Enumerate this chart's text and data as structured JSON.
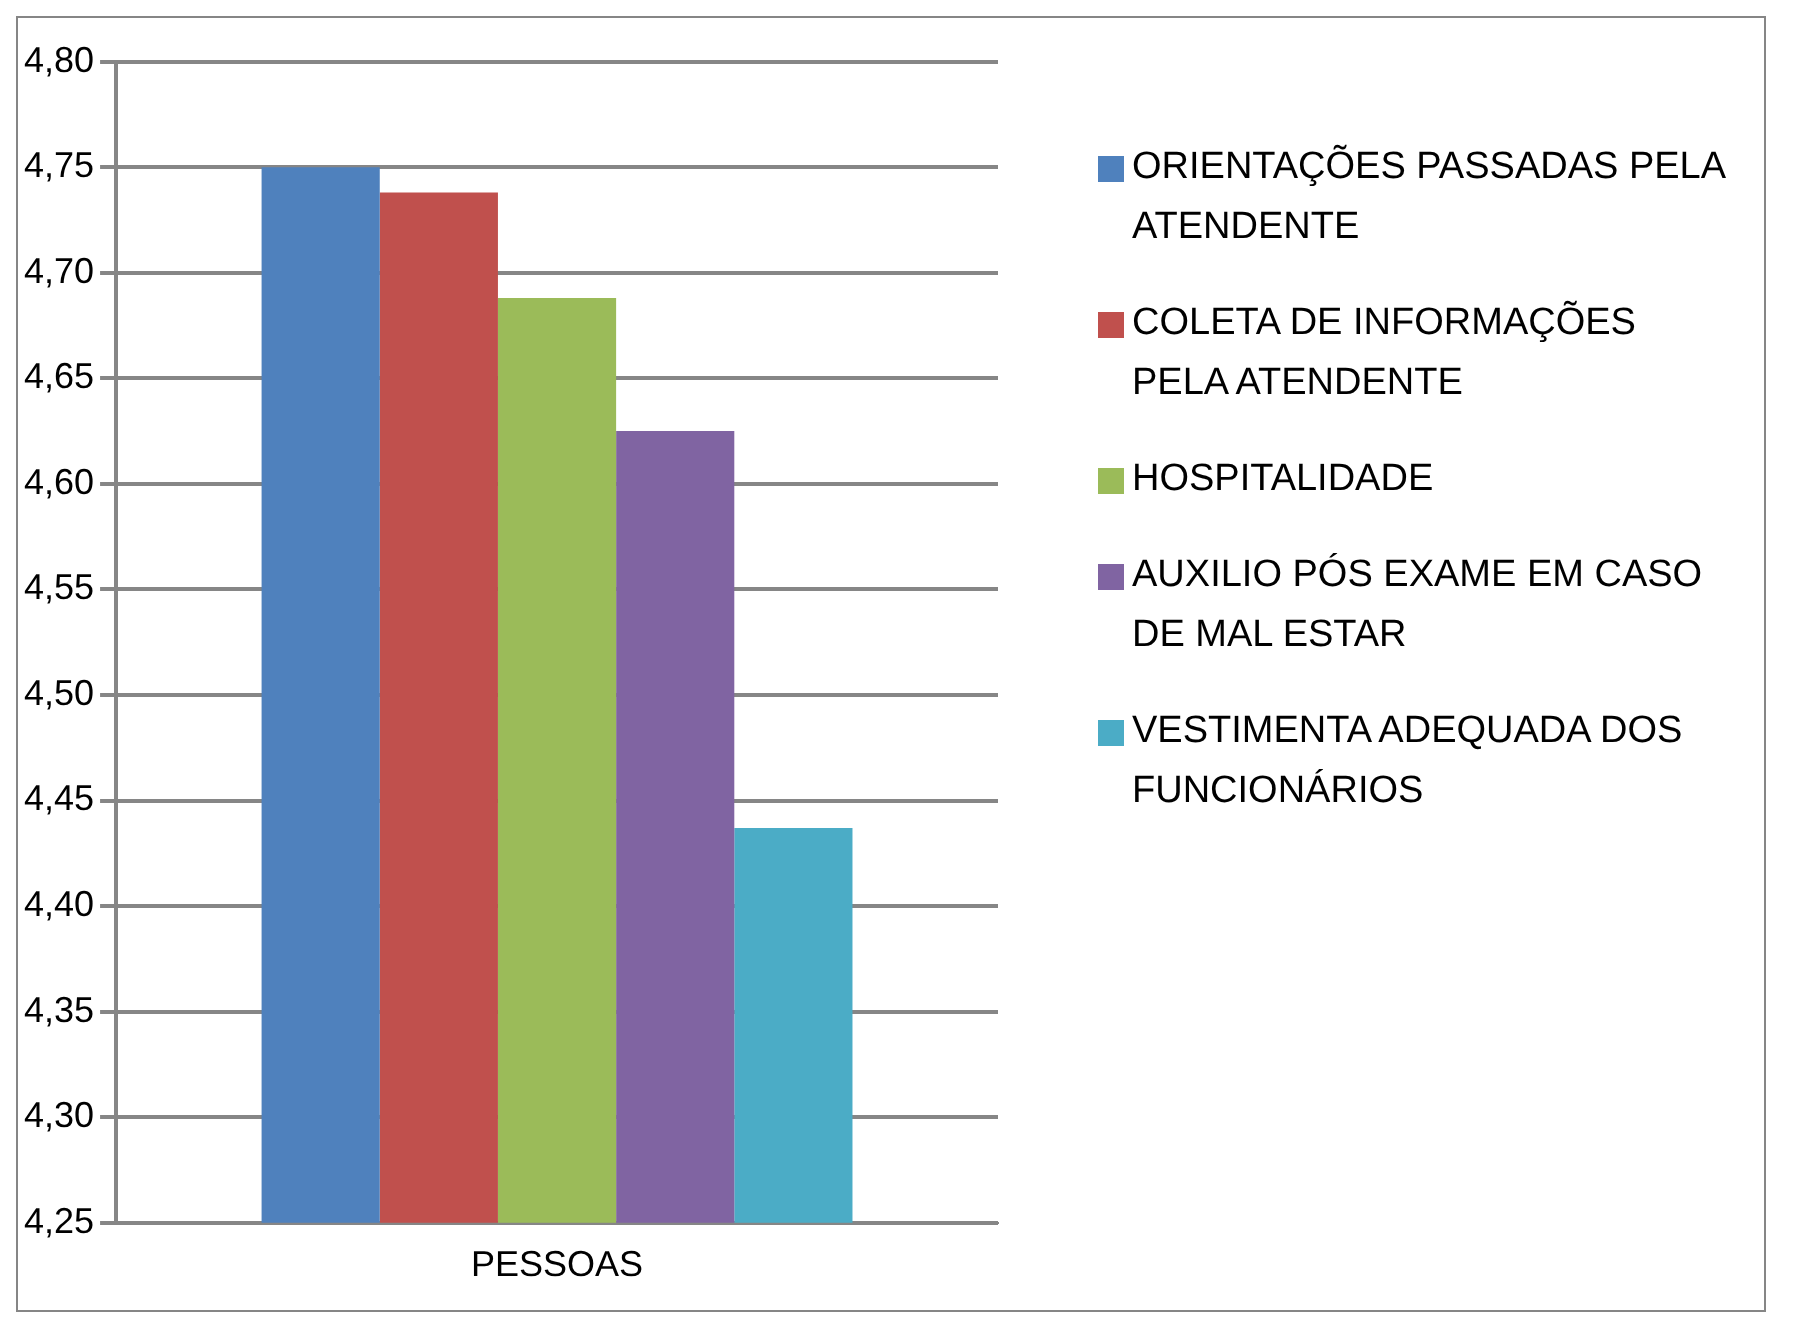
{
  "chart_data": {
    "type": "bar",
    "categories": [
      "PESSOAS"
    ],
    "series": [
      {
        "name": "ORIENTAÇÕES PASSADAS PELA ATENDENTE",
        "color": "#4f81bd",
        "values": [
          4.75
        ]
      },
      {
        "name": "COLETA DE INFORMAÇÕES PELA ATENDENTE",
        "color": "#c0504d",
        "values": [
          4.738
        ]
      },
      {
        "name": "HOSPITALIDADE",
        "color": "#9bbb59",
        "values": [
          4.688
        ]
      },
      {
        "name": "AUXILIO PÓS EXAME EM CASO DE MAL ESTAR",
        "color": "#8064a2",
        "values": [
          4.625
        ]
      },
      {
        "name": "VESTIMENTA ADEQUADA DOS FUNCIONÁRIOS",
        "color": "#4bacc6",
        "values": [
          4.437
        ]
      }
    ],
    "ylim": [
      4.25,
      4.8
    ],
    "yticks": [
      {
        "value": 4.25,
        "label": "4,25"
      },
      {
        "value": 4.3,
        "label": "4,30"
      },
      {
        "value": 4.35,
        "label": "4,35"
      },
      {
        "value": 4.4,
        "label": "4,40"
      },
      {
        "value": 4.45,
        "label": "4,45"
      },
      {
        "value": 4.5,
        "label": "4,50"
      },
      {
        "value": 4.55,
        "label": "4,55"
      },
      {
        "value": 4.6,
        "label": "4,60"
      },
      {
        "value": 4.65,
        "label": "4,65"
      },
      {
        "value": 4.7,
        "label": "4,70"
      },
      {
        "value": 4.75,
        "label": "4,75"
      },
      {
        "value": 4.8,
        "label": "4,80"
      }
    ],
    "grid": "y",
    "legend": "right"
  }
}
